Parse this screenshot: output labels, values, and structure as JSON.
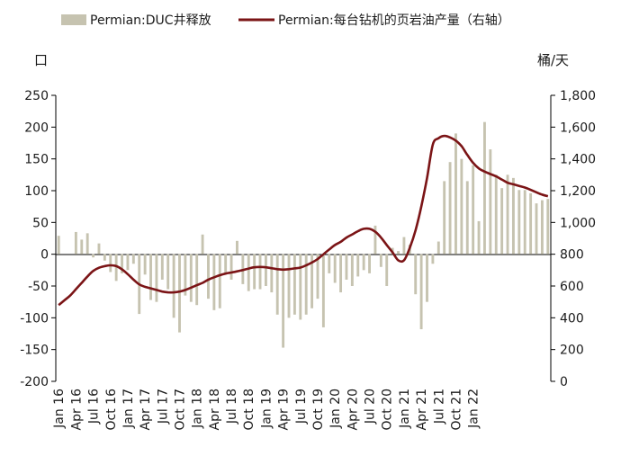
{
  "chart_data": {
    "type": "bar+line",
    "legend_position": "top",
    "grid": false,
    "left_unit": "口",
    "right_unit": "桶/天",
    "colors": {
      "bar": "#c6c3b0",
      "line": "#7b1416",
      "axis": "#000000"
    },
    "x_tick_labels": [
      "Jan 16",
      "Apr 16",
      "Jul 16",
      "Oct 16",
      "Jan 17",
      "Apr 17",
      "Jul 17",
      "Oct 17",
      "Jan 18",
      "Apr 18",
      "Jul 18",
      "Oct 18",
      "Jan 19",
      "Apr 19",
      "Jul 19",
      "Oct 19",
      "Jan 20",
      "Apr 20",
      "Jul 20",
      "Oct 20",
      "Jan 21",
      "Apr 21",
      "Jul 21",
      "Oct 21",
      "Jan 22"
    ],
    "y_left_ticks": [
      "250",
      "200",
      "150",
      "100",
      "50",
      "0",
      "-50",
      "-100",
      "-150",
      "-200"
    ],
    "y_right_ticks": [
      "1,800",
      "1,600",
      "1,400",
      "1,200",
      "1,000",
      "800",
      "600",
      "400",
      "200",
      "0"
    ],
    "ylim_left": [
      -200,
      250
    ],
    "ylim_right": [
      0,
      1800
    ],
    "series": [
      {
        "name": "Permian:DUC井释放",
        "axis": "left",
        "kind": "bar",
        "values": [
          29,
          0,
          0,
          35,
          23,
          33,
          -5,
          17,
          -10,
          -28,
          -42,
          -30,
          -25,
          -15,
          -94,
          -32,
          -72,
          -75,
          -40,
          -55,
          -100,
          -123,
          -65,
          -75,
          -80,
          31,
          -70,
          -88,
          -85,
          -30,
          -40,
          21,
          -47,
          -58,
          -55,
          -55,
          -50,
          -60,
          -95,
          -147,
          -100,
          -95,
          -103,
          -95,
          -85,
          -70,
          -115,
          -30,
          -45,
          -60,
          -40,
          -50,
          -35,
          -25,
          -30,
          45,
          -20,
          -50,
          10,
          5,
          27,
          15,
          -63,
          -118,
          -75,
          -15,
          20,
          115,
          145,
          190,
          150,
          115,
          140,
          52,
          208,
          165,
          125,
          104,
          125,
          120,
          101,
          101,
          96,
          80,
          85,
          87
        ]
      },
      {
        "name": "Permian:每台钻机的页岩油产量（右轴）",
        "axis": "right",
        "kind": "line",
        "values": [
          480,
          510,
          540,
          580,
          620,
          660,
          695,
          715,
          725,
          730,
          725,
          705,
          675,
          640,
          610,
          595,
          585,
          575,
          565,
          560,
          560,
          565,
          575,
          590,
          605,
          620,
          640,
          655,
          668,
          678,
          685,
          692,
          700,
          710,
          718,
          720,
          718,
          712,
          706,
          703,
          706,
          711,
          716,
          730,
          748,
          770,
          800,
          830,
          858,
          878,
          905,
          925,
          945,
          960,
          960,
          942,
          905,
          858,
          812,
          762,
          762,
          840,
          950,
          1100,
          1280,
          1490,
          1530,
          1545,
          1535,
          1515,
          1480,
          1425,
          1375,
          1340,
          1320,
          1305,
          1290,
          1270,
          1250,
          1240,
          1230,
          1220,
          1205,
          1190,
          1175,
          1165
        ]
      }
    ]
  }
}
